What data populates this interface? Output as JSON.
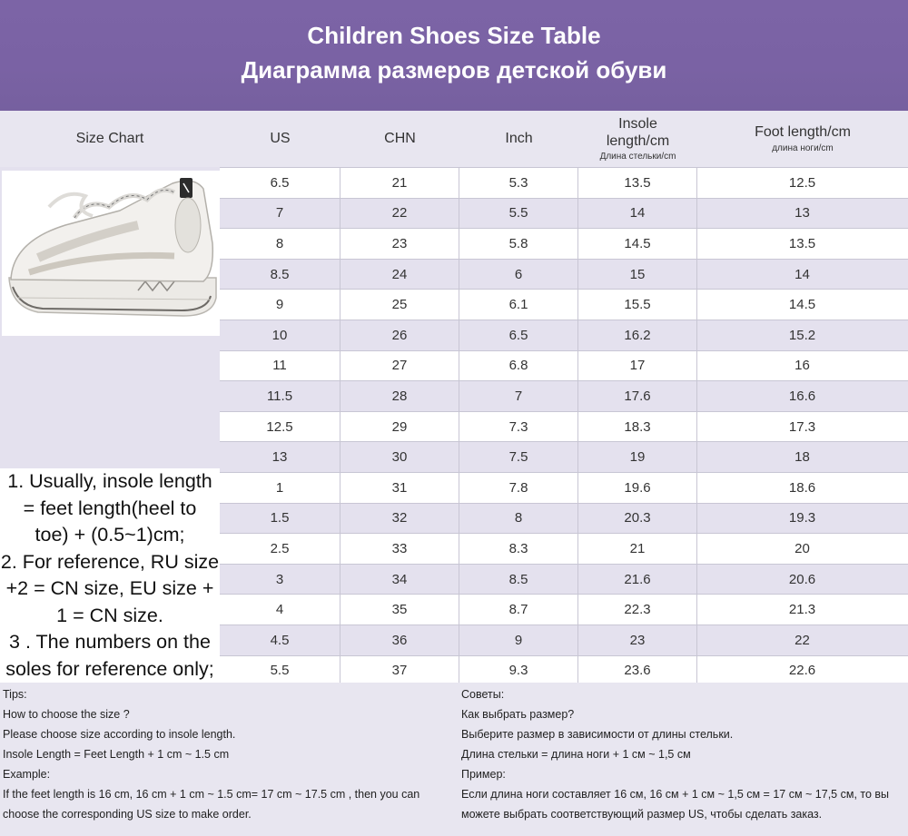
{
  "header": {
    "title_en": "Children Shoes Size Table",
    "title_ru": "Диаграмма размеров детской обуви"
  },
  "columns": {
    "size_chart": "Size Chart",
    "us": "US",
    "chn": "CHN",
    "inch": "Inch",
    "insole_line1": "Insole",
    "insole_line2": "length/cm",
    "insole_ru": "Длина стельки/cm",
    "foot": "Foot length/cm",
    "foot_ru": "длина ноги/cm"
  },
  "rows": [
    {
      "us": "6.5",
      "chn": "21",
      "inch": "5.3",
      "insole": "13.5",
      "foot": "12.5"
    },
    {
      "us": "7",
      "chn": "22",
      "inch": "5.5",
      "insole": "14",
      "foot": "13"
    },
    {
      "us": "8",
      "chn": "23",
      "inch": "5.8",
      "insole": "14.5",
      "foot": "13.5"
    },
    {
      "us": "8.5",
      "chn": "24",
      "inch": "6",
      "insole": "15",
      "foot": "14"
    },
    {
      "us": "9",
      "chn": "25",
      "inch": "6.1",
      "insole": "15.5",
      "foot": "14.5"
    },
    {
      "us": "10",
      "chn": "26",
      "inch": "6.5",
      "insole": "16.2",
      "foot": "15.2"
    },
    {
      "us": "11",
      "chn": "27",
      "inch": "6.8",
      "insole": "17",
      "foot": "16"
    },
    {
      "us": "11.5",
      "chn": "28",
      "inch": "7",
      "insole": "17.6",
      "foot": "16.6"
    },
    {
      "us": "12.5",
      "chn": "29",
      "inch": "7.3",
      "insole": "18.3",
      "foot": "17.3"
    },
    {
      "us": "13",
      "chn": "30",
      "inch": "7.5",
      "insole": "19",
      "foot": "18"
    },
    {
      "us": "1",
      "chn": "31",
      "inch": "7.8",
      "insole": "19.6",
      "foot": "18.6"
    },
    {
      "us": "1.5",
      "chn": "32",
      "inch": "8",
      "insole": "20.3",
      "foot": "19.3"
    },
    {
      "us": "2.5",
      "chn": "33",
      "inch": "8.3",
      "insole": "21",
      "foot": "20"
    },
    {
      "us": "3",
      "chn": "34",
      "inch": "8.5",
      "insole": "21.6",
      "foot": "20.6"
    },
    {
      "us": "4",
      "chn": "35",
      "inch": "8.7",
      "insole": "22.3",
      "foot": "21.3"
    },
    {
      "us": "4.5",
      "chn": "36",
      "inch": "9",
      "insole": "23",
      "foot": "22"
    },
    {
      "us": "5.5",
      "chn": "37",
      "inch": "9.3",
      "insole": "23.6",
      "foot": "22.6"
    }
  ],
  "notes": [
    "1. Usually, insole length",
    "= feet length(heel to",
    "toe) + (0.5~1)cm;",
    "2. For reference, RU size",
    "+2 = CN size, EU size +",
    "1 = CN size.",
    "3 . The numbers on the",
    "soles for reference only;"
  ],
  "tips_en": [
    "Tips:",
    "How to choose the size ?",
    "Please choose size according to insole length.",
    "Insole Length = Feet Length + 1 cm ~ 1.5 cm",
    "Example:",
    "If the feet length is 16 cm, 16 cm + 1 cm ~ 1.5 cm= 17 cm ~ 17.5 cm , then you can choose the corresponding US size to make order."
  ],
  "tips_ru": [
    "Советы:",
    "Как выбрать размер?",
    "Выберите размер в зависимости от длины стельки.",
    "Длина стельки = длина ноги + 1 см ~ 1,5 см",
    "Пример:",
    "Если длина ноги составляет 16 см, 16 см + 1 см ~ 1,5 см = 17 см ~ 17,5 см, то вы можете выбрать соответствующий размер US, чтобы сделать заказ."
  ],
  "colors": {
    "header_bg": "#7a62a4",
    "row_alt": "#e4e1ee",
    "border": "#c8c6d4"
  },
  "image": {
    "subject": "white chunky children's sneaker"
  }
}
